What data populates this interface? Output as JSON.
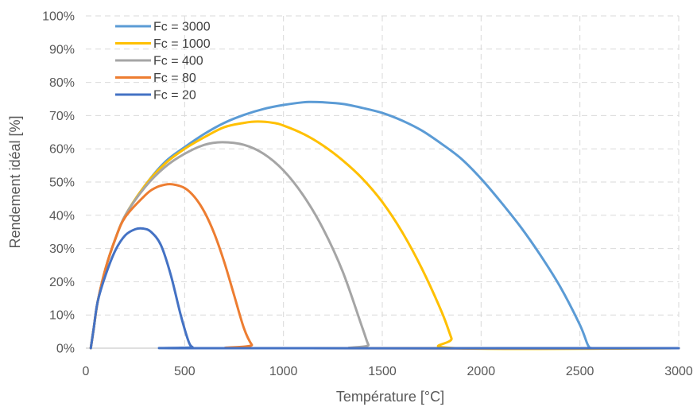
{
  "chart_data": {
    "type": "line",
    "title": "",
    "xlabel": "Température [°C]",
    "ylabel": "Rendement idéal [%]",
    "xlim": [
      0,
      3000
    ],
    "ylim": [
      0,
      100
    ],
    "x_ticks": [
      "0",
      "500",
      "1000",
      "1500",
      "2000",
      "2500",
      "3000"
    ],
    "y_ticks": [
      "0%",
      "10%",
      "20%",
      "30%",
      "40%",
      "50%",
      "60%",
      "70%",
      "80%",
      "90%",
      "100%"
    ],
    "grid": true,
    "legend_position": "top-left",
    "series": [
      {
        "name": "Fc = 3000",
        "color": "#5B9BD5",
        "x": [
          25,
          40,
          60,
          100,
          150,
          200,
          300,
          400,
          500,
          600,
          700,
          800,
          900,
          1000,
          1100,
          1140,
          1200,
          1300,
          1400,
          1500,
          1600,
          1700,
          1800,
          1900,
          2000,
          2100,
          2200,
          2300,
          2400,
          2500,
          2540,
          2560,
          2600,
          3000
        ],
        "y": [
          0,
          6,
          14,
          24,
          33,
          40,
          49,
          56,
          60.5,
          64.5,
          67.8,
          70.2,
          72,
          73.2,
          74,
          74.1,
          74,
          73.5,
          72.3,
          70.8,
          68.5,
          65.5,
          61.5,
          57,
          51,
          44,
          36.5,
          28,
          18.5,
          7,
          1,
          0,
          0,
          0
        ]
      },
      {
        "name": "Fc = 1000",
        "color": "#FFC000",
        "x": [
          25,
          40,
          60,
          100,
          150,
          200,
          300,
          400,
          500,
          600,
          700,
          800,
          870,
          950,
          1000,
          1100,
          1200,
          1300,
          1400,
          1500,
          1600,
          1700,
          1800,
          1850,
          1870,
          3000
        ],
        "y": [
          0,
          6,
          14,
          24,
          33,
          40,
          49,
          55.5,
          60,
          63.5,
          66.5,
          67.8,
          68.2,
          67.8,
          67,
          64.5,
          61,
          56.5,
          51,
          44,
          35,
          24,
          11,
          3,
          0,
          0
        ]
      },
      {
        "name": "Fc = 400",
        "color": "#A5A5A5",
        "x": [
          25,
          40,
          60,
          100,
          150,
          200,
          300,
          400,
          500,
          600,
          690,
          800,
          900,
          1000,
          1100,
          1200,
          1300,
          1400,
          1430,
          1450,
          3000
        ],
        "y": [
          0,
          6,
          14,
          24,
          33,
          40,
          48.5,
          54.5,
          58.5,
          61.2,
          62,
          61.2,
          58.5,
          53.5,
          46,
          36,
          23,
          6,
          1,
          0,
          0
        ]
      },
      {
        "name": "Fc = 80",
        "color": "#ED7D31",
        "x": [
          25,
          40,
          60,
          100,
          150,
          200,
          300,
          350,
          400,
          440,
          500,
          550,
          600,
          650,
          700,
          750,
          800,
          840,
          870,
          3000
        ],
        "y": [
          0,
          6,
          14,
          24,
          33,
          39.5,
          46,
          48.2,
          49.2,
          49.3,
          48.2,
          45.5,
          41,
          34.5,
          26,
          16,
          6,
          1,
          0,
          0
        ]
      },
      {
        "name": "Fc = 20",
        "color": "#4472C4",
        "x": [
          25,
          40,
          60,
          100,
          150,
          200,
          250,
          290,
          330,
          380,
          430,
          480,
          520,
          540,
          555,
          3000
        ],
        "y": [
          0,
          6,
          14,
          22,
          29.5,
          34,
          35.8,
          36,
          35,
          31,
          22,
          10,
          2,
          0.3,
          0,
          0
        ]
      }
    ]
  }
}
